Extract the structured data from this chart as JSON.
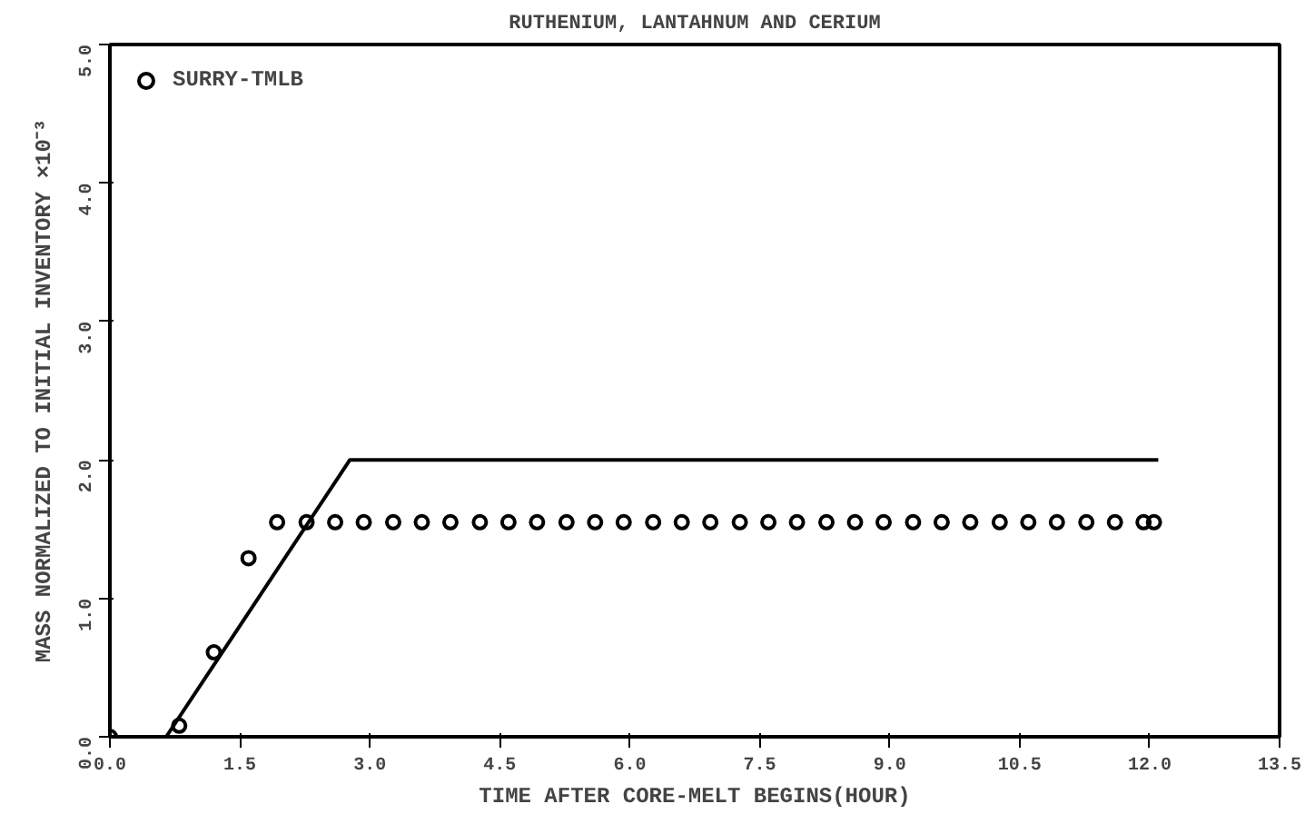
{
  "chart_data": {
    "type": "scatter",
    "title": "RUTHENIUM, LANTAHNUM AND CERIUM",
    "xlabel": "TIME AFTER CORE-MELT BEGINS(HOUR)",
    "ylabel": "MASS NORMALIZED TO INITIAL INVENTORY ×10⁻³",
    "xlim": [
      0,
      13.5
    ],
    "xticks": [
      {
        "value": 0,
        "label": "0.0"
      },
      1.5,
      {
        "value": 3,
        "label": "3.0"
      },
      4.5,
      {
        "value": 6,
        "label": "6.0"
      },
      7.5,
      {
        "value": 9,
        "label": "9.0"
      },
      10.5,
      {
        "value": 12,
        "label": "12.0"
      },
      13.5
    ],
    "ylim": [
      0,
      5
    ],
    "yticks": [
      {
        "value": 0,
        "label": "0.0"
      },
      {
        "value": 1,
        "label": "1.0"
      },
      {
        "value": 2,
        "label": "2.0"
      },
      {
        "value": 3,
        "label": "3.0"
      },
      {
        "value": 4,
        "label": "4.0"
      },
      {
        "value": 5,
        "label": "5.0"
      }
    ],
    "grid": false,
    "legend": "top left",
    "series": [
      {
        "name": "SURRY-TMLB",
        "marker": "circle",
        "color": "#000000",
        "x": [
          0.0,
          0.8,
          1.2,
          1.6,
          1.93,
          2.27,
          2.6,
          2.93,
          3.27,
          3.6,
          3.93,
          4.27,
          4.6,
          4.93,
          5.27,
          5.6,
          5.93,
          6.27,
          6.6,
          6.93,
          7.27,
          7.6,
          7.93,
          8.27,
          8.6,
          8.93,
          9.27,
          9.6,
          9.93,
          10.27,
          10.6,
          10.93,
          11.27,
          11.6,
          11.93,
          12.05
        ],
        "values": [
          0.0,
          0.08,
          0.61,
          1.29,
          1.55,
          1.55,
          1.55,
          1.55,
          1.55,
          1.55,
          1.55,
          1.55,
          1.55,
          1.55,
          1.55,
          1.55,
          1.55,
          1.55,
          1.55,
          1.55,
          1.55,
          1.55,
          1.55,
          1.55,
          1.55,
          1.55,
          1.55,
          1.55,
          1.55,
          1.55,
          1.55,
          1.55,
          1.55,
          1.55,
          1.55,
          1.55
        ]
      },
      {
        "type": "line",
        "color": "#000000",
        "line_style": "solid",
        "x": [
          0.0,
          0.65,
          2.77,
          12.1
        ],
        "values": [
          0.0,
          0.0,
          2.0,
          2.0
        ]
      }
    ]
  }
}
